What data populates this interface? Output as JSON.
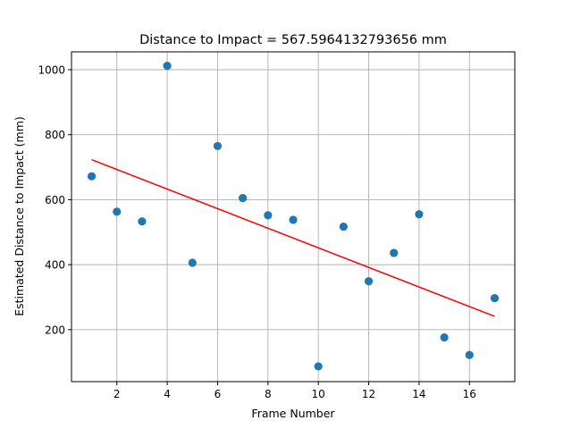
{
  "chart_data": {
    "type": "scatter",
    "title": "Distance to Impact = 567.5964132793656 mm",
    "xlabel": "Frame Number",
    "ylabel": "Estimated Distance to Impact (mm)",
    "xlim": [
      0.2,
      17.8
    ],
    "ylim": [
      40,
      1055
    ],
    "xticks": [
      2,
      4,
      6,
      8,
      10,
      12,
      14,
      16
    ],
    "yticks": [
      200,
      400,
      600,
      800,
      1000
    ],
    "grid": true,
    "point_color": "#1f77b4",
    "fit_color": "#ff0000",
    "series": [
      {
        "type": "scatter",
        "x": [
          1,
          2,
          3,
          4,
          5,
          6,
          7,
          8,
          9,
          10,
          11,
          12,
          13,
          14,
          15,
          16,
          17
        ],
        "y": [
          672,
          563,
          533,
          1012,
          406,
          765,
          605,
          552,
          538,
          87,
          517,
          349,
          436,
          555,
          176,
          122,
          297
        ]
      },
      {
        "type": "line",
        "x": [
          1,
          17
        ],
        "y": [
          723,
          241
        ]
      }
    ]
  }
}
